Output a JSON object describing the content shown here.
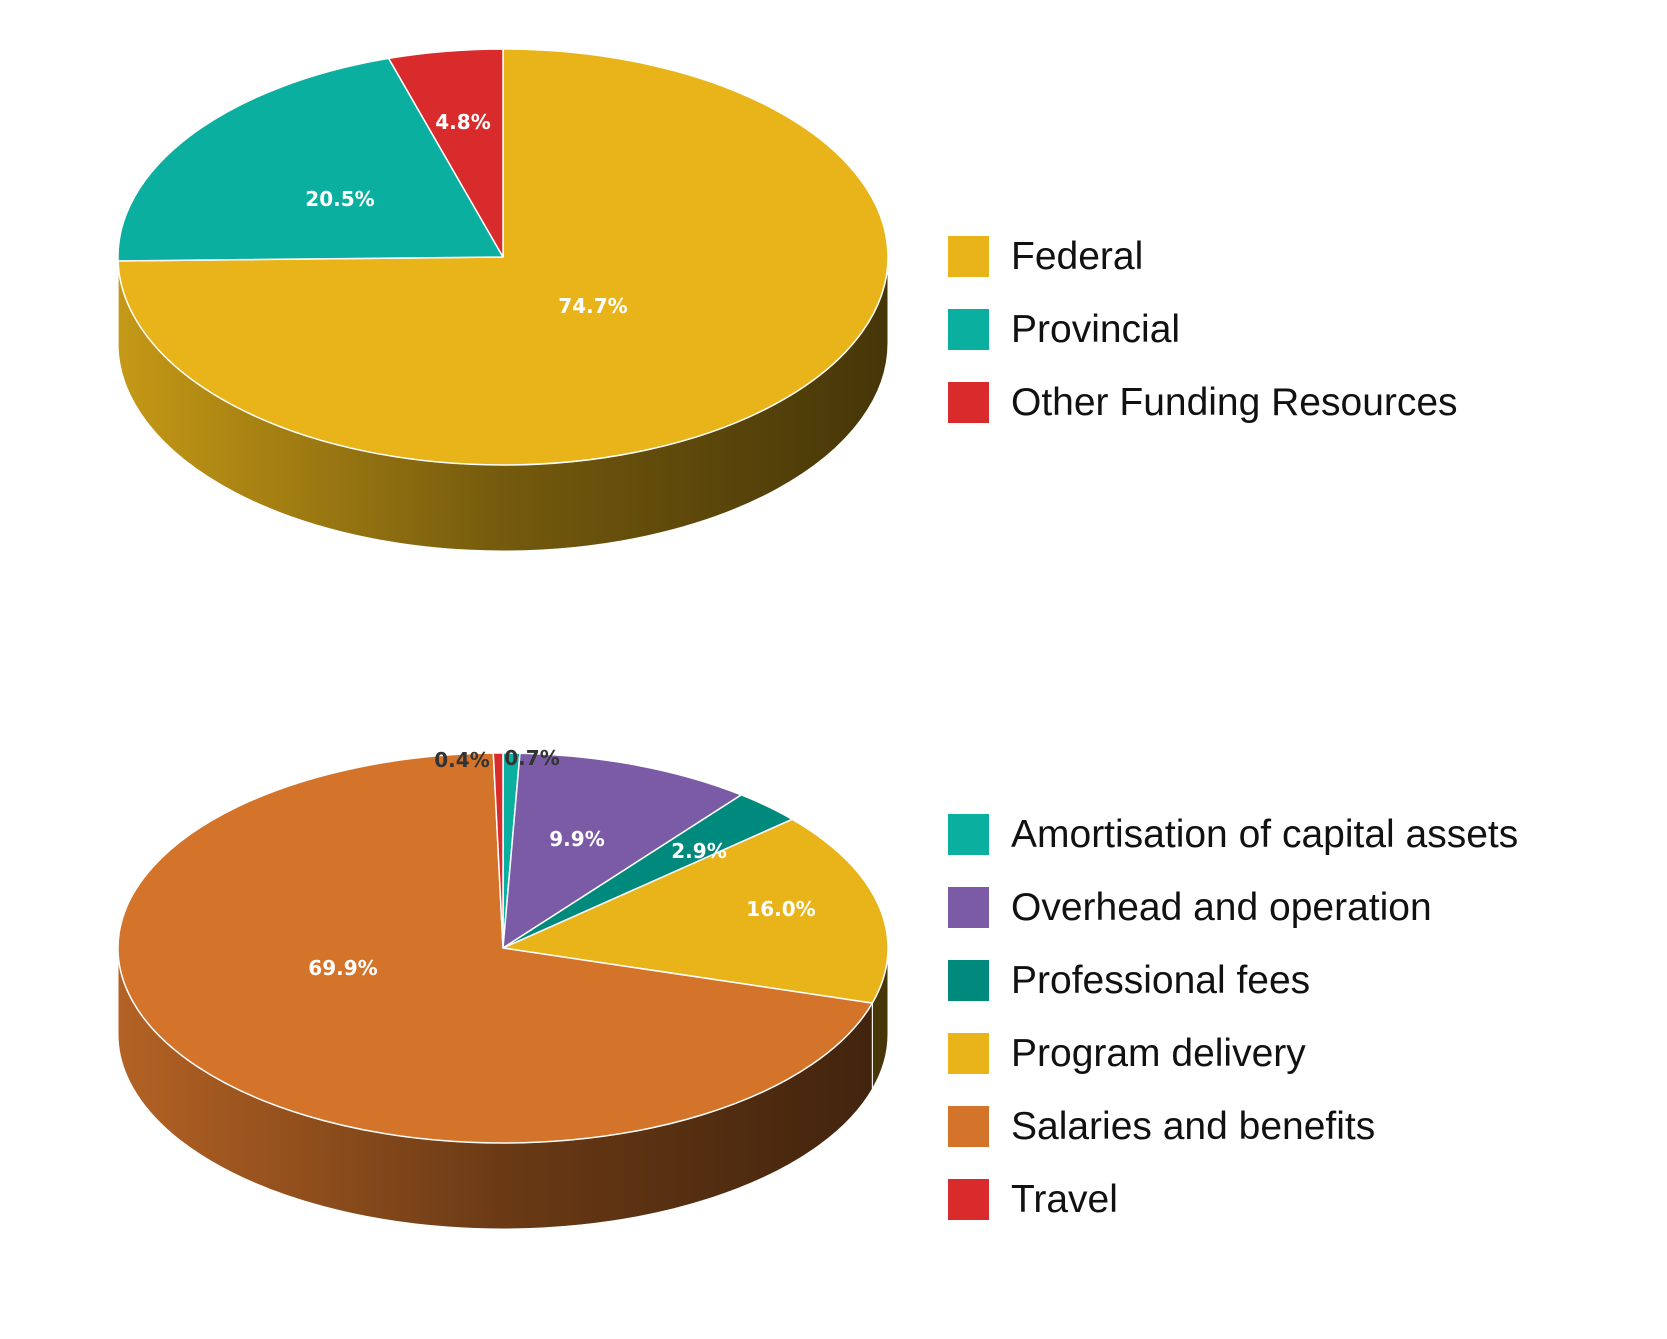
{
  "chart_data": [
    {
      "type": "pie",
      "title": "",
      "categories": [
        "Federal",
        "Provincial",
        "Other Funding Resources"
      ],
      "values": [
        74.7,
        20.5,
        4.8
      ],
      "value_labels": [
        "74.7%",
        "20.5%",
        "4.8%"
      ],
      "colors": [
        "#E8B41A",
        "#0AAFA0",
        "#D92B2B"
      ],
      "legend_position": "right",
      "style": "3d"
    },
    {
      "type": "pie",
      "title": "",
      "categories": [
        "Amortisation of capital assets",
        "Overhead and operation",
        "Professional fees",
        "Program delivery",
        "Salaries and benefits",
        "Travel"
      ],
      "values": [
        0.7,
        9.9,
        2.9,
        16.0,
        69.9,
        0.4
      ],
      "value_labels": [
        "0.7%",
        "9.9%",
        "2.9%",
        "16.0%",
        "69.9%",
        "0.4%"
      ],
      "colors": [
        "#0AAFA0",
        "#7B5BA6",
        "#008A7E",
        "#E8B41A",
        "#D4732A",
        "#D92B2B"
      ],
      "legend_position": "right",
      "style": "3d"
    }
  ],
  "funding": {
    "legend": [
      {
        "label": "Federal",
        "color": "#E8B41A"
      },
      {
        "label": "Provincial",
        "color": "#0AAFA0"
      },
      {
        "label": "Other Funding Resources",
        "color": "#D92B2B"
      }
    ]
  },
  "expenses": {
    "legend": [
      {
        "label": "Amortisation of capital assets",
        "color": "#0AAFA0"
      },
      {
        "label": "Overhead and operation",
        "color": "#7B5BA6"
      },
      {
        "label": "Professional fees",
        "color": "#008A7E"
      },
      {
        "label": "Program delivery",
        "color": "#E8B41A"
      },
      {
        "label": "Salaries and benefits",
        "color": "#D4732A"
      },
      {
        "label": "Travel",
        "color": "#D92B2B"
      }
    ]
  }
}
